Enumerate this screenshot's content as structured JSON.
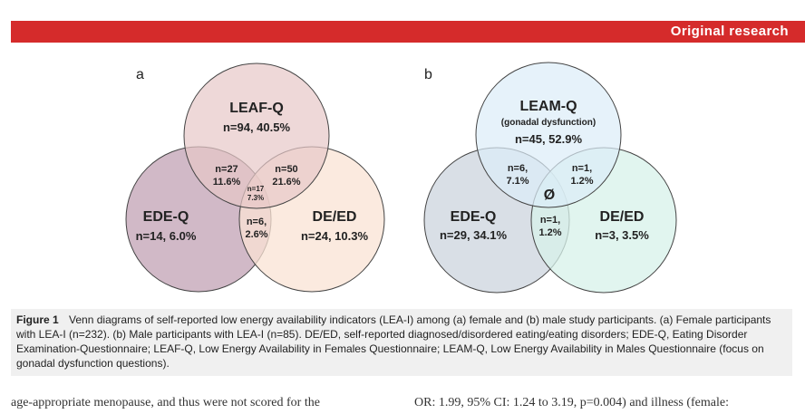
{
  "header": {
    "section": "Original research"
  },
  "figure": {
    "panel_a": {
      "label": "a",
      "circles": {
        "top": {
          "name": "LEAF-Q",
          "value": "n=94, 40.5%",
          "color": "#e7c7c8"
        },
        "left": {
          "name": "EDE-Q",
          "value": "n=14, 6.0%",
          "color": "#c9adbd"
        },
        "right": {
          "name": "DE/ED",
          "value": "n=24, 10.3%",
          "color": "#fae3d4"
        }
      },
      "overlaps": {
        "top_left": [
          "n=27",
          "11.6%"
        ],
        "top_right": [
          "n=50",
          "21.6%"
        ],
        "center": [
          "n=17",
          "7.3%"
        ],
        "left_right": [
          "n=6,",
          "2.6%"
        ]
      }
    },
    "panel_b": {
      "label": "b",
      "circles": {
        "top": {
          "name": "LEAM-Q",
          "subtitle": "(gonadal dysfunction)",
          "value": "n=45, 52.9%",
          "color": "#dcedf8"
        },
        "left": {
          "name": "EDE-Q",
          "value": "n=29, 34.1%",
          "color": "#d5dbe3"
        },
        "right": {
          "name": "DE/ED",
          "value": "n=3, 3.5%",
          "color": "#d7f2ea"
        }
      },
      "overlaps": {
        "top_left": [
          "n=6,",
          "7.1%"
        ],
        "top_right": [
          "n=1,",
          "1.2%"
        ],
        "center": "Ø",
        "left_right": [
          "n=1,",
          "1.2%"
        ]
      }
    }
  },
  "caption": {
    "label": "Figure 1",
    "text": "Venn diagrams of self-reported low energy availability indicators (LEA-I) among (a) female and (b) male study participants. (a) Female participants with LEA-I (n=232). (b) Male participants with LEA-I (n=85). DE/ED, self-reported diagnosed/disordered eating/eating disorders; EDE-Q, Eating Disorder Examination-Questionnaire; LEAF-Q, Low Energy Availability in Females Questionnaire; LEAM-Q, Low Energy Availability in Males Questionnaire (focus on gonadal dysfunction questions)."
  },
  "body": {
    "left": "age-appropriate menopause, and thus were not scored for the",
    "right": "OR: 1.99, 95% CI: 1.24 to 3.19, p=0.004) and illness (female:"
  }
}
